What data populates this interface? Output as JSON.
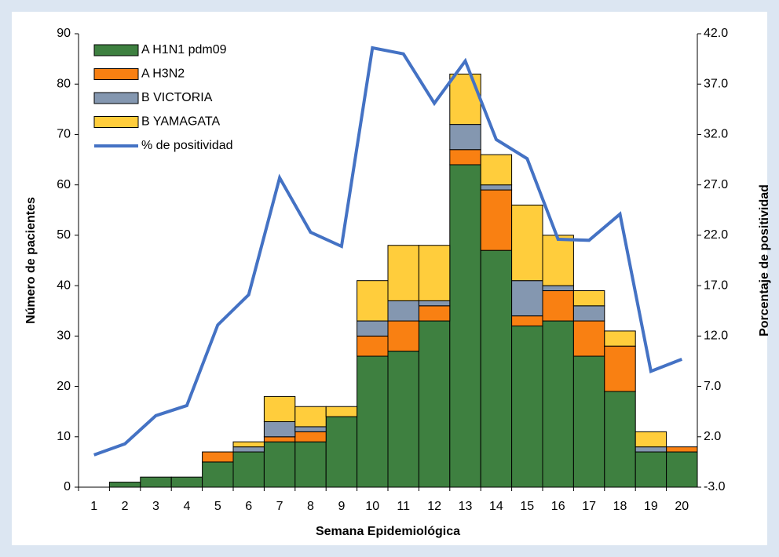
{
  "chart_data": {
    "type": "bar",
    "stacked": true,
    "x_label": "Semana Epidemiológica",
    "y_label": "Número de pacientes",
    "y2_label": "Porcentaje de positividad",
    "categories": [
      "1",
      "2",
      "3",
      "4",
      "5",
      "6",
      "7",
      "8",
      "9",
      "10",
      "11",
      "12",
      "13",
      "14",
      "15",
      "16",
      "17",
      "18",
      "19",
      "20"
    ],
    "series": [
      {
        "name": "A H1N1 pdm09",
        "color": "#3e8040",
        "values": [
          0,
          1,
          2,
          2,
          5,
          7,
          9,
          9,
          14,
          26,
          27,
          33,
          64,
          47,
          32,
          33,
          26,
          19,
          7,
          7
        ]
      },
      {
        "name": "A H3N2",
        "color": "#f98012",
        "values": [
          0,
          0,
          0,
          0,
          2,
          0,
          1,
          2,
          0,
          4,
          6,
          3,
          3,
          12,
          2,
          6,
          7,
          9,
          0,
          1
        ]
      },
      {
        "name": "B VICTORIA",
        "color": "#8497b0",
        "values": [
          0,
          0,
          0,
          0,
          0,
          1,
          3,
          1,
          0,
          3,
          4,
          1,
          5,
          1,
          7,
          1,
          3,
          0,
          1,
          0
        ]
      },
      {
        "name": "B YAMAGATA",
        "color": "#ffcd3c",
        "values": [
          0,
          0,
          0,
          0,
          0,
          1,
          5,
          4,
          2,
          8,
          11,
          11,
          10,
          6,
          15,
          10,
          3,
          3,
          3,
          0
        ]
      },
      {
        "name": "% de positividad",
        "color": "#4472c4",
        "type": "line",
        "axis": "y2",
        "values": [
          0.2,
          1.3,
          4.1,
          5.1,
          13.1,
          16.1,
          27.7,
          22.3,
          20.9,
          40.6,
          40.0,
          35.1,
          39.3,
          31.5,
          29.6,
          21.6,
          21.5,
          24.1,
          8.5,
          9.7
        ]
      }
    ],
    "ylim": [
      0,
      90
    ],
    "yticks": [
      0,
      10,
      20,
      30,
      40,
      50,
      60,
      70,
      80,
      90
    ],
    "y2lim": [
      -3,
      42
    ],
    "y2ticks": [
      {
        "value": -3,
        "label": "-3.0"
      },
      {
        "value": 2,
        "label": "2.0"
      },
      {
        "value": 7,
        "label": "7.0"
      },
      {
        "value": 12,
        "label": "12.0"
      },
      {
        "value": 17,
        "label": "17.0"
      },
      {
        "value": 22,
        "label": "22.0"
      },
      {
        "value": 27,
        "label": "27.0"
      },
      {
        "value": 32,
        "label": "32.0"
      },
      {
        "value": 37,
        "label": "37.0"
      },
      {
        "value": 42,
        "label": "42.0"
      }
    ],
    "legend": "top-left",
    "grid": false
  }
}
